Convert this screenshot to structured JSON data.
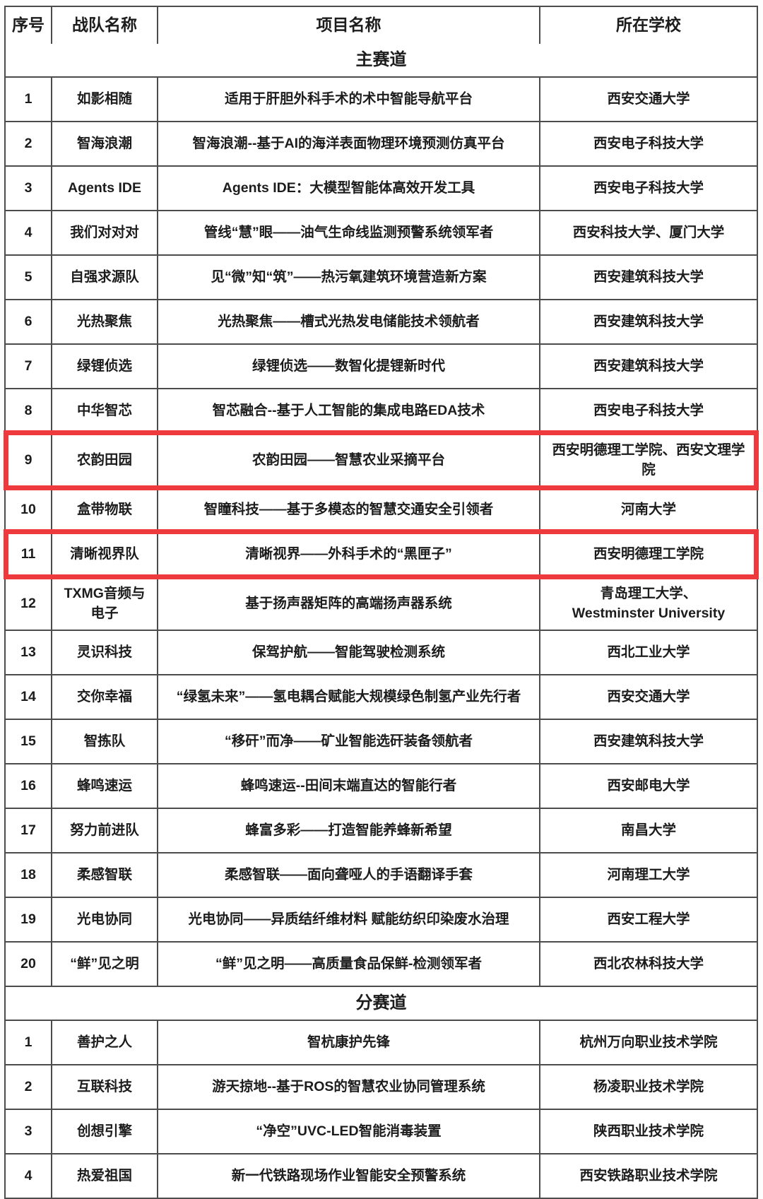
{
  "page": {
    "background": "#fdfdfd"
  },
  "table": {
    "headers": [
      "序号",
      "战队名称",
      "项目名称",
      "所在学校"
    ],
    "border_color": "#4c4c4c",
    "text_color": "#1c1c1c",
    "highlight_color": "#ee3a3c",
    "sections": [
      {
        "title": "主赛道",
        "rows": [
          {
            "no": "1",
            "team": "如影相随",
            "project": "适用于肝胆外科手术的术中智能导航平台",
            "school": "西安交通大学",
            "highlighted": false
          },
          {
            "no": "2",
            "team": "智海浪潮",
            "project": "智海浪潮--基于AI的海洋表面物理环境预测仿真平台",
            "school": "西安电子科技大学",
            "highlighted": false
          },
          {
            "no": "3",
            "team": "Agents IDE",
            "project": "Agents IDE：大模型智能体高效开发工具",
            "school": "西安电子科技大学",
            "highlighted": false
          },
          {
            "no": "4",
            "team": "我们对对对",
            "project": "管线“慧”眼——油气生命线监测预警系统领军者",
            "school": "西安科技大学、厦门大学",
            "highlighted": false
          },
          {
            "no": "5",
            "team": "自强求源队",
            "project": "见“微”知“筑”——热污氧建筑环境营造新方案",
            "school": "西安建筑科技大学",
            "highlighted": false
          },
          {
            "no": "6",
            "team": "光热聚焦",
            "project": "光热聚焦——槽式光热发电储能技术领航者",
            "school": "西安建筑科技大学",
            "highlighted": false
          },
          {
            "no": "7",
            "team": "绿锂侦选",
            "project": "绿锂侦选——数智化提锂新时代",
            "school": "西安建筑科技大学",
            "highlighted": false
          },
          {
            "no": "8",
            "team": "中华智芯",
            "project": "智芯融合--基于人工智能的集成电路EDA技术",
            "school": "西安电子科技大学",
            "highlighted": false
          },
          {
            "no": "9",
            "team": "农韵田园",
            "project": "农韵田园——智慧农业采摘平台",
            "school": "西安明德理工学院、西安文理学院",
            "highlighted": true
          },
          {
            "no": "10",
            "team": "盒带物联",
            "project": "智瞳科技——基于多模态的智慧交通安全引领者",
            "school": "河南大学",
            "highlighted": false
          },
          {
            "no": "11",
            "team": "清晰视界队",
            "project": "清晰视界——外科手术的“黑匣子”",
            "school": "西安明德理工学院",
            "highlighted": true
          },
          {
            "no": "12",
            "team": "TXMG音频与电子",
            "project": "基于扬声器矩阵的高端扬声器系统",
            "school": "青岛理工大学、\nWestminster University",
            "highlighted": false
          },
          {
            "no": "13",
            "team": "灵识科技",
            "project": "保驾护航——智能驾驶检测系统",
            "school": "西北工业大学",
            "highlighted": false
          },
          {
            "no": "14",
            "team": "交你幸福",
            "project": "“绿氢未来”——氢电耦合赋能大规模绿色制氢产业先行者",
            "school": "西安交通大学",
            "highlighted": false
          },
          {
            "no": "15",
            "team": "智拣队",
            "project": "“移矸”而净——矿业智能选矸装备领航者",
            "school": "西安建筑科技大学",
            "highlighted": false
          },
          {
            "no": "16",
            "team": "蜂鸣速运",
            "project": "蜂鸣速运--田间末端直达的智能行者",
            "school": "西安邮电大学",
            "highlighted": false
          },
          {
            "no": "17",
            "team": "努力前进队",
            "project": "蜂富多彩——打造智能养蜂新希望",
            "school": "南昌大学",
            "highlighted": false
          },
          {
            "no": "18",
            "team": "柔感智联",
            "project": "柔感智联——面向聋哑人的手语翻译手套",
            "school": "河南理工大学",
            "highlighted": false
          },
          {
            "no": "19",
            "team": "光电协同",
            "project": "光电协同——异质结纤维材料 赋能纺织印染废水治理",
            "school": "西安工程大学",
            "highlighted": false
          },
          {
            "no": "20",
            "team": "“鲜”见之明",
            "project": "“鲜”见之明——高质量食品保鲜-检测领军者",
            "school": "西北农林科技大学",
            "highlighted": false
          }
        ]
      },
      {
        "title": "分赛道",
        "rows": [
          {
            "no": "1",
            "team": "善护之人",
            "project": "智杭康护先锋",
            "school": "杭州万向职业技术学院",
            "highlighted": false
          },
          {
            "no": "2",
            "team": "互联科技",
            "project": "游天掠地--基于ROS的智慧农业协同管理系统",
            "school": "杨凌职业技术学院",
            "highlighted": false
          },
          {
            "no": "3",
            "team": "创想引擎",
            "project": "“净空”UVC-LED智能消毒装置",
            "school": "陕西职业技术学院",
            "highlighted": false
          },
          {
            "no": "4",
            "team": "热爱祖国",
            "project": "新一代铁路现场作业智能安全预警系统",
            "school": "西安铁路职业技术学院",
            "highlighted": false
          }
        ]
      }
    ]
  }
}
